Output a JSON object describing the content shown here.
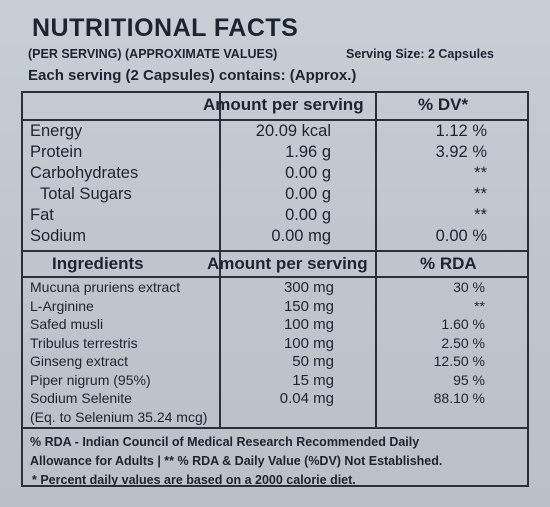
{
  "header": {
    "title": "NUTRITIONAL FACTS",
    "per_serving_note": "(PER SERVING) (APPROXIMATE VALUES)",
    "serving_size": "Serving Size: 2 Capsules",
    "each_serving": "Each serving (2 Capsules) contains: (Approx.)"
  },
  "nutrition_table": {
    "col_amount": "Amount per serving",
    "col_dv": "% DV*",
    "rows": [
      {
        "name": "Energy",
        "amount": "20.09 kcal",
        "dv": "1.12 %"
      },
      {
        "name": "Protein",
        "amount": "1.96 g",
        "dv": "3.92 %"
      },
      {
        "name": "Carbohydrates",
        "amount": "0.00 g",
        "dv": "**"
      },
      {
        "name": "Total Sugars",
        "amount": "0.00 g",
        "dv": "**"
      },
      {
        "name": "Fat",
        "amount": "0.00 g",
        "dv": "**"
      },
      {
        "name": "Sodium",
        "amount": "0.00 mg",
        "dv": "0.00 %"
      }
    ]
  },
  "ingredients_table": {
    "col_name": "Ingredients",
    "col_amount": "Amount per serving",
    "col_rda": "% RDA",
    "rows": [
      {
        "name": "Mucuna pruriens extract",
        "amount": "300 mg",
        "rda": "30 %"
      },
      {
        "name": "L-Arginine",
        "amount": "150 mg",
        "rda": "**"
      },
      {
        "name": "Safed musli",
        "amount": "100 mg",
        "rda": "1.60 %"
      },
      {
        "name": "Tribulus terrestris",
        "amount": "100 mg",
        "rda": "2.50 %"
      },
      {
        "name": "Ginseng extract",
        "amount": "50 mg",
        "rda": "12.50 %"
      },
      {
        "name": "Piper nigrum (95%)",
        "amount": "15 mg",
        "rda": "95 %"
      },
      {
        "name": "Sodium Selenite",
        "amount": "0.04 mg",
        "rda": "88.10 %"
      },
      {
        "name": "(Eq. to Selenium 35.24 mcg)",
        "amount": "",
        "rda": ""
      }
    ]
  },
  "footnotes": {
    "line1": "% RDA - Indian Council of Medical Research Recommended Daily",
    "line2": "Allowance for Adults | ** % RDA & Daily Value (%DV) Not Established.",
    "line3": "* Percent daily values are based on a 2000 calorie diet."
  }
}
